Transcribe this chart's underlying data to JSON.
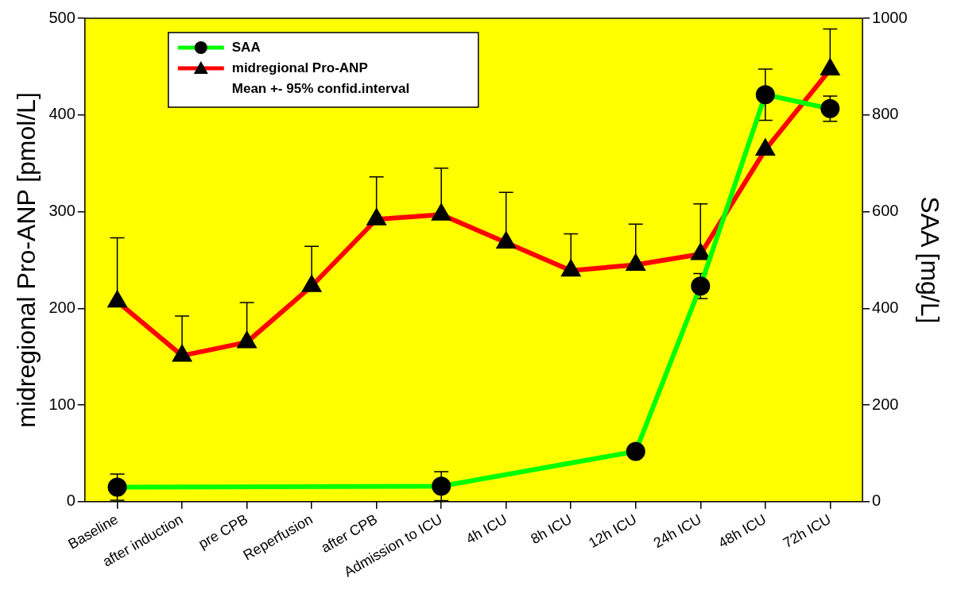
{
  "chart_data": {
    "type": "line",
    "xlabel": null,
    "ylabel": "midregional Pro-ANP [pmol/L]",
    "y2label": "SAA [mg/L]",
    "categories": [
      "Baseline",
      "after induction",
      "pre CPB",
      "Reperfusion",
      "after CPB",
      "Admission to ICU",
      "4h ICU",
      "8h ICU",
      "12h ICU",
      "24h ICU",
      "48h ICU",
      "72h ICU"
    ],
    "series": [
      {
        "name": "SAA",
        "color": "#00ff00",
        "axis": "y2",
        "marker": "circle",
        "values": [
          30,
          null,
          null,
          null,
          null,
          32,
          null,
          null,
          104,
          446,
          842,
          813
        ],
        "errors": [
          27,
          null,
          null,
          null,
          null,
          30,
          null,
          null,
          11,
          26,
          53,
          26
        ]
      },
      {
        "name": "midregional Pro-ANP",
        "color": "#ff0000",
        "marker": "triangle",
        "values": [
          207,
          151,
          165,
          223,
          292,
          297,
          268,
          239,
          245,
          256,
          364,
          447
        ],
        "errors": [
          [
            207,
            273
          ],
          [
            151,
            192
          ],
          [
            165,
            206
          ],
          [
            223,
            264
          ],
          [
            292,
            336
          ],
          [
            297,
            345
          ],
          [
            268,
            320
          ],
          [
            239,
            277
          ],
          [
            245,
            287
          ],
          [
            256,
            308
          ],
          null,
          [
            447,
            489
          ]
        ]
      }
    ],
    "annotations": [
      "Mean +- 95% confid.interval"
    ],
    "ylim": [
      0,
      500
    ],
    "yticks": [
      0,
      100,
      200,
      300,
      400,
      500
    ],
    "y2lim": [
      0,
      1000
    ],
    "y2ticks": [
      0,
      200,
      400,
      600,
      800,
      1000
    ],
    "grid": false,
    "legend": "top left",
    "line_style": "solid"
  }
}
